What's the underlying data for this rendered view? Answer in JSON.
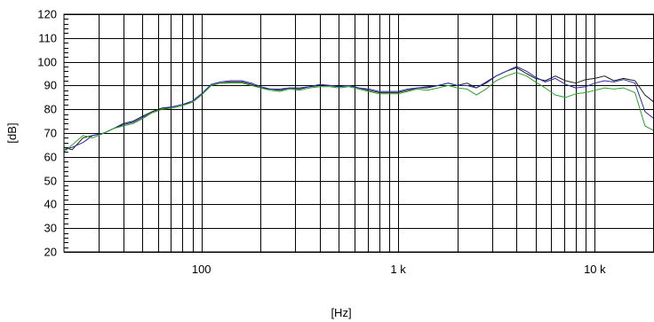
{
  "chart_data": {
    "type": "line",
    "xlabel": "[Hz]",
    "ylabel": "[dB]",
    "x_scale": "log",
    "xlim": [
      20,
      20000
    ],
    "ylim": [
      20,
      120
    ],
    "y_ticks": [
      20,
      30,
      40,
      50,
      60,
      70,
      80,
      90,
      100,
      110,
      120
    ],
    "x_tick_labels": [
      {
        "value": 100,
        "label": "100"
      },
      {
        "value": 1000,
        "label": "1 k"
      },
      {
        "value": 10000,
        "label": "10 k"
      }
    ],
    "x_gridlines": [
      30,
      40,
      50,
      60,
      70,
      80,
      90,
      100,
      200,
      300,
      400,
      500,
      600,
      700,
      800,
      900,
      1000,
      2000,
      3000,
      4000,
      5000,
      6000,
      7000,
      8000,
      9000,
      10000
    ],
    "grid": true,
    "series": [
      {
        "color": "#1a1a1a",
        "x": [
          20,
          22,
          25,
          28,
          32,
          36,
          40,
          45,
          50,
          56,
          63,
          71,
          80,
          90,
          100,
          112,
          125,
          140,
          160,
          180,
          200,
          224,
          250,
          280,
          315,
          355,
          400,
          450,
          500,
          560,
          630,
          710,
          800,
          900,
          1000,
          1120,
          1250,
          1400,
          1600,
          1800,
          2000,
          2240,
          2500,
          2800,
          3150,
          3550,
          4000,
          4500,
          5000,
          5600,
          6300,
          7100,
          8000,
          9000,
          10000,
          11200,
          12500,
          14000,
          16000,
          18000,
          20000
        ],
        "y": [
          64,
          63,
          68,
          69,
          70,
          72,
          74,
          75,
          77,
          79,
          80.5,
          81,
          82,
          83,
          86,
          90,
          91,
          91.5,
          91.5,
          90.5,
          89,
          88.5,
          88,
          89,
          88.5,
          89.5,
          90,
          90,
          89.5,
          90,
          89,
          88,
          87,
          87,
          87,
          88,
          89,
          89,
          90,
          91,
          90,
          91,
          89,
          91,
          94,
          96,
          97.5,
          95,
          93,
          92,
          94,
          92,
          91,
          92.5,
          93,
          94,
          92,
          93,
          92,
          86,
          83
        ]
      },
      {
        "color": "#2a2aa8",
        "x": [
          20,
          22,
          25,
          28,
          32,
          36,
          40,
          45,
          50,
          56,
          63,
          71,
          80,
          90,
          100,
          112,
          125,
          140,
          160,
          180,
          200,
          224,
          250,
          280,
          315,
          355,
          400,
          450,
          500,
          560,
          630,
          710,
          800,
          900,
          1000,
          1120,
          1250,
          1400,
          1600,
          1800,
          2000,
          2240,
          2500,
          2800,
          3150,
          3550,
          4000,
          4500,
          5000,
          5600,
          6300,
          7100,
          8000,
          9000,
          10000,
          11200,
          12500,
          14000,
          16000,
          18000,
          20000
        ],
        "y": [
          63,
          64,
          66,
          69,
          70,
          72,
          73.5,
          74.5,
          76.5,
          78.5,
          80,
          81,
          82,
          83.5,
          86.5,
          90.5,
          91.5,
          92,
          92,
          91,
          89.5,
          88.5,
          88.5,
          89,
          89,
          89.5,
          90.5,
          90,
          89.5,
          90,
          89,
          88.5,
          87.5,
          87.5,
          87.5,
          88.5,
          89,
          89.5,
          90,
          91,
          90,
          90,
          89,
          91.5,
          94,
          96,
          98,
          96,
          93.5,
          91.5,
          93,
          90.5,
          89,
          89.5,
          91,
          92,
          91.5,
          92.5,
          91,
          79,
          76
        ]
      },
      {
        "color": "#2aa02a",
        "x": [
          20,
          22,
          25,
          28,
          32,
          36,
          40,
          45,
          50,
          56,
          63,
          71,
          80,
          90,
          100,
          112,
          125,
          140,
          160,
          180,
          200,
          224,
          250,
          280,
          315,
          355,
          400,
          450,
          500,
          560,
          630,
          710,
          800,
          900,
          1000,
          1120,
          1250,
          1400,
          1600,
          1800,
          2000,
          2240,
          2500,
          2800,
          3150,
          3550,
          4000,
          4500,
          5000,
          5600,
          6300,
          7100,
          8000,
          9000,
          10000,
          11200,
          12500,
          14000,
          16000,
          18000,
          20000
        ],
        "y": [
          62,
          65,
          69,
          68,
          70,
          72,
          73,
          74,
          76,
          78.5,
          80,
          80.5,
          81.5,
          83,
          86,
          90,
          91,
          91,
          91,
          90,
          89,
          88,
          87.5,
          88.5,
          88,
          89,
          89.5,
          89.5,
          89,
          89.5,
          88.5,
          87.5,
          86.5,
          86.5,
          86.5,
          87.5,
          88.5,
          88,
          89,
          90,
          89,
          88.5,
          86,
          88.5,
          92,
          94,
          95.5,
          94,
          91.5,
          89,
          86,
          85,
          86.5,
          87,
          88,
          89,
          88.5,
          89,
          87,
          73,
          71
        ]
      }
    ]
  }
}
